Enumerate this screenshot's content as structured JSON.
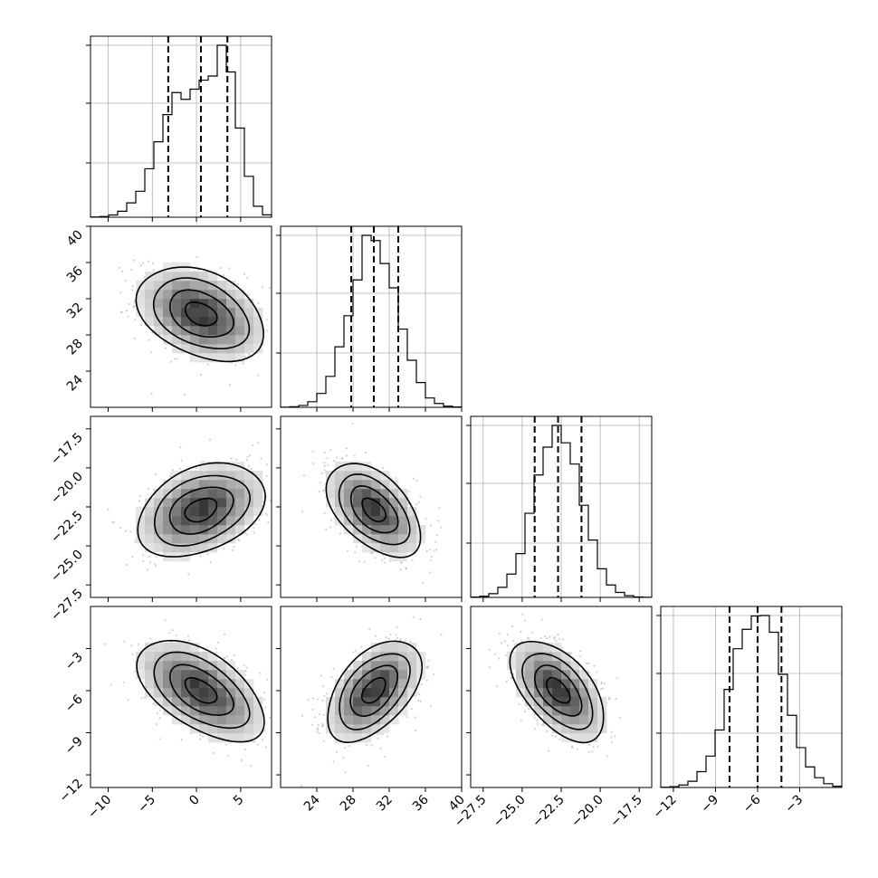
{
  "chart_data": {
    "type": "corner",
    "parameters": [
      {
        "range": [
          -12,
          8.5
        ],
        "ticks": [
          -10,
          -5,
          0,
          5
        ],
        "tick_labels": [
          "−10",
          "−5",
          "0",
          "5"
        ],
        "hist_mean": 0,
        "hist_sd": 3.6,
        "bimodal": true,
        "quantiles": [
          -3.2,
          0.5,
          3.5
        ]
      },
      {
        "range": [
          20,
          40
        ],
        "ticks": [
          24,
          28,
          32,
          36,
          40
        ],
        "tick_labels": [
          "24",
          "28",
          "32",
          "36",
          "40"
        ],
        "hist_mean": 30.3,
        "hist_sd": 2.6,
        "quantiles": [
          27.8,
          30.3,
          33.0
        ]
      },
      {
        "range": [
          -28.3,
          -16.7
        ],
        "ticks": [
          -27.5,
          -25.0,
          -22.5,
          -20.0,
          -17.5
        ],
        "tick_labels": [
          "−27.5",
          "−25.0",
          "−22.5",
          "−20.0",
          "−17.5"
        ],
        "hist_mean": -22.7,
        "hist_sd": 1.5,
        "quantiles": [
          -24.2,
          -22.7,
          -21.2
        ]
      },
      {
        "range": [
          -12.9,
          0
        ],
        "ticks": [
          -12,
          -9,
          -6,
          -3
        ],
        "tick_labels": [
          "−12",
          "−9",
          "−6",
          "−3"
        ],
        "hist_mean": -6,
        "hist_sd": 1.8,
        "quantiles": [
          -8.0,
          -6.0,
          -4.3
        ]
      }
    ],
    "pairs": [
      {
        "row": 1,
        "col": 0,
        "center": [
          0.5,
          30.3
        ],
        "correlation": -0.35
      },
      {
        "row": 2,
        "col": 0,
        "center": [
          0.5,
          -22.7
        ],
        "correlation": 0.35
      },
      {
        "row": 2,
        "col": 1,
        "center": [
          30.3,
          -22.7
        ],
        "correlation": -0.5
      },
      {
        "row": 3,
        "col": 0,
        "center": [
          0.5,
          -6.0
        ],
        "correlation": -0.55
      },
      {
        "row": 3,
        "col": 1,
        "center": [
          30.3,
          -6.0
        ],
        "correlation": 0.5
      },
      {
        "row": 3,
        "col": 2,
        "center": [
          -22.7,
          -6.0
        ],
        "correlation": -0.55
      }
    ],
    "grid": true,
    "colors": {
      "scatter": "#9a9a9a",
      "density_dark": "#000000",
      "line": "#000000"
    }
  }
}
